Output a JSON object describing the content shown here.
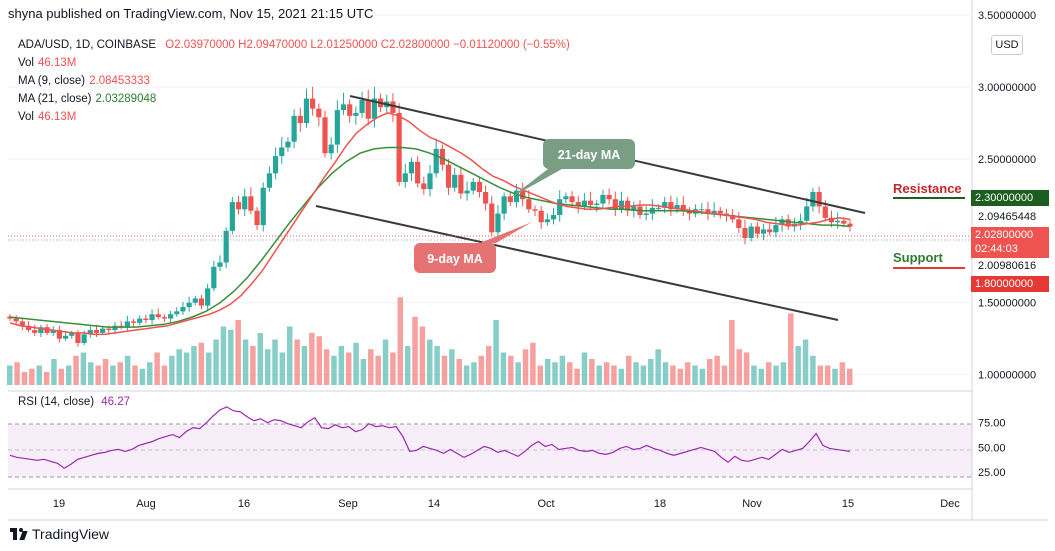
{
  "header": "shyna published on TradingView.com, Nov 15, 2021 21:15 UTC",
  "legend": {
    "symbol": "ADA/USD, 1D, COINBASE",
    "ohlc": "O2.03970000  H2.09470000  L2.01250000  C2.02800000  −0.01120000 (−0.55%)",
    "vol_label": "Vol",
    "vol_value": "46.13M",
    "ma9_label": "MA (9, close)",
    "ma9_value": "2.08453333",
    "ma21_label": "MA (21, close)",
    "ma21_value": "2.03289048",
    "vol2_label": "Vol",
    "vol2_value": "46.13M"
  },
  "currency_button": "USD",
  "rsi": {
    "label": "RSI (14, close)",
    "value": "46.27"
  },
  "annotations": {
    "ma21": "21-day MA",
    "ma9": "9-day MA",
    "resistance": "Resistance",
    "support": "Support"
  },
  "price_tags": {
    "resistance": "2.30000000",
    "ma9": "2.09465448",
    "close": "2.02800000",
    "countdown": "02:44:03",
    "ma21": "2.00980616",
    "support": "1.80000000"
  },
  "brand": "TradingView",
  "colors": {
    "up": "#26a69a",
    "down": "#ef5350",
    "ma9": "#ef5350",
    "ma21": "#388e3c",
    "rsi": "#9c27b0",
    "resistance": "#1b5e20",
    "support_tag": "#e53935"
  },
  "chart_data": {
    "type": "candlestick",
    "price_axis": {
      "ticks": [
        "3.50000000",
        "3.00000000",
        "2.50000000",
        "1.50000000",
        "1.00000000"
      ],
      "range": [
        0.9,
        3.55
      ]
    },
    "rsi_axis": {
      "ticks": [
        "75.00",
        "50.00",
        "25.00"
      ],
      "band": [
        30,
        70
      ]
    },
    "time_axis": {
      "ticks": [
        "19",
        "Aug",
        "16",
        "Sep",
        "14",
        "Oct",
        "18",
        "Nov",
        "15",
        "Dec"
      ]
    },
    "candles_close": [
      1.39,
      1.37,
      1.34,
      1.31,
      1.29,
      1.33,
      1.29,
      1.31,
      1.25,
      1.27,
      1.29,
      1.22,
      1.28,
      1.31,
      1.29,
      1.32,
      1.31,
      1.34,
      1.33,
      1.37,
      1.36,
      1.39,
      1.38,
      1.42,
      1.4,
      1.39,
      1.42,
      1.44,
      1.47,
      1.5,
      1.53,
      1.48,
      1.6,
      1.75,
      1.78,
      2.0,
      2.2,
      2.15,
      2.24,
      2.14,
      2.04,
      2.3,
      2.4,
      2.52,
      2.58,
      2.62,
      2.8,
      2.75,
      2.92,
      2.85,
      2.79,
      2.54,
      2.6,
      2.84,
      2.88,
      2.8,
      2.82,
      2.91,
      2.78,
      2.92,
      2.86,
      2.9,
      2.82,
      2.34,
      2.4,
      2.48,
      2.33,
      2.29,
      2.4,
      2.57,
      2.46,
      2.3,
      2.39,
      2.26,
      2.28,
      2.34,
      2.27,
      2.19,
      1.99,
      2.12,
      2.24,
      2.2,
      2.28,
      2.22,
      2.15,
      2.14,
      2.06,
      2.08,
      2.11,
      2.22,
      2.24,
      2.2,
      2.17,
      2.21,
      2.18,
      2.19,
      2.25,
      2.22,
      2.15,
      2.21,
      2.14,
      2.17,
      2.11,
      2.12,
      2.16,
      2.16,
      2.2,
      2.15,
      2.18,
      2.14,
      2.12,
      2.15,
      2.15,
      2.12,
      2.14,
      2.12,
      2.11,
      2.08,
      2.02,
      1.95,
      2.03,
      1.98,
      2.01,
      1.99,
      2.04,
      2.08,
      2.03,
      2.05,
      2.07,
      2.17,
      2.27,
      2.17,
      2.09,
      2.06,
      2.07,
      2.05,
      2.03
    ],
    "ma9": [
      1.36,
      1.34,
      1.33,
      1.32,
      1.31,
      1.3,
      1.29,
      1.29,
      1.28,
      1.28,
      1.29,
      1.3,
      1.31,
      1.32,
      1.33,
      1.34,
      1.36,
      1.38,
      1.4,
      1.42,
      1.45,
      1.49,
      1.55,
      1.63,
      1.72,
      1.83,
      1.94,
      2.05,
      2.16,
      2.27,
      2.38,
      2.48,
      2.59,
      2.68,
      2.74,
      2.79,
      2.82,
      2.8,
      2.76,
      2.7,
      2.65,
      2.62,
      2.58,
      2.54,
      2.49,
      2.43,
      2.38,
      2.35,
      2.31,
      2.28,
      2.25,
      2.22,
      2.19,
      2.17,
      2.16,
      2.15,
      2.15,
      2.16,
      2.17,
      2.17,
      2.18,
      2.18,
      2.17,
      2.16,
      2.15,
      2.14,
      2.13,
      2.12,
      2.11,
      2.1,
      2.09,
      2.08,
      2.06,
      2.05,
      2.04,
      2.04,
      2.05,
      2.06,
      2.08,
      2.09,
      2.08
    ],
    "ma21": [
      1.4,
      1.39,
      1.38,
      1.37,
      1.36,
      1.35,
      1.34,
      1.33,
      1.33,
      1.33,
      1.34,
      1.35,
      1.37,
      1.4,
      1.44,
      1.5,
      1.58,
      1.68,
      1.8,
      1.93,
      2.06,
      2.18,
      2.3,
      2.4,
      2.48,
      2.54,
      2.57,
      2.58,
      2.58,
      2.57,
      2.54,
      2.5,
      2.45,
      2.4,
      2.35,
      2.3,
      2.26,
      2.23,
      2.21,
      2.19,
      2.18,
      2.17,
      2.16,
      2.15,
      2.15,
      2.14,
      2.14,
      2.14,
      2.14,
      2.13,
      2.12,
      2.11,
      2.1,
      2.09,
      2.08,
      2.07,
      2.06,
      2.05,
      2.04,
      2.04,
      2.03
    ],
    "volume_relative": [
      0.3,
      0.35,
      0.2,
      0.25,
      0.3,
      0.2,
      0.4,
      0.25,
      0.3,
      0.45,
      0.5,
      0.35,
      0.3,
      0.4,
      0.3,
      0.35,
      0.45,
      0.3,
      0.25,
      0.35,
      0.5,
      0.3,
      0.45,
      0.55,
      0.5,
      0.6,
      0.65,
      0.5,
      0.7,
      0.9,
      0.85,
      1.0,
      0.7,
      0.6,
      0.8,
      0.55,
      0.7,
      0.5,
      0.9,
      0.7,
      0.6,
      0.8,
      0.75,
      0.55,
      0.45,
      0.6,
      0.5,
      0.65,
      0.4,
      0.55,
      0.45,
      0.7,
      0.5,
      1.35,
      0.6,
      1.05,
      0.9,
      0.7,
      0.6,
      0.45,
      0.55,
      0.4,
      0.3,
      0.35,
      0.45,
      0.6,
      1.0,
      0.5,
      0.45,
      0.35,
      0.55,
      0.65,
      0.3,
      0.4,
      0.35,
      0.45,
      0.35,
      0.25,
      0.5,
      0.4,
      0.3,
      0.35,
      0.3,
      0.25,
      0.45,
      0.35,
      0.3,
      0.4,
      0.55,
      0.35,
      0.3,
      0.25,
      0.35,
      0.3,
      0.25,
      0.4,
      0.45,
      0.3,
      1.0,
      0.55,
      0.5,
      0.3,
      0.25,
      0.35,
      0.3,
      0.35,
      1.1,
      0.6,
      0.7,
      0.45,
      0.3,
      0.3,
      0.25,
      0.35,
      0.25
    ],
    "rsi": [
      42,
      40,
      39,
      38,
      37,
      38,
      36,
      34,
      29,
      33,
      38,
      40,
      42,
      44,
      45,
      47,
      48,
      46,
      48,
      52,
      54,
      56,
      59,
      61,
      63,
      60,
      66,
      70,
      69,
      75,
      82,
      88,
      91,
      87,
      86,
      81,
      77,
      79,
      75,
      78,
      77,
      74,
      72,
      70,
      76,
      80,
      70,
      69,
      73,
      70,
      71,
      66,
      68,
      74,
      71,
      72,
      70,
      71,
      61,
      46,
      47,
      51,
      49,
      47,
      44,
      48,
      44,
      40,
      43,
      47,
      51,
      49,
      45,
      47,
      44,
      41,
      46,
      52,
      56,
      51,
      53,
      48,
      49,
      50,
      47,
      46,
      47,
      44,
      43,
      45,
      49,
      51,
      48,
      49,
      52,
      49,
      47,
      44,
      42,
      44,
      46,
      48,
      50,
      48,
      46,
      40,
      35,
      41,
      37,
      36,
      38,
      40,
      38,
      43,
      48,
      45,
      47,
      49,
      56,
      64,
      52,
      49,
      48,
      47,
      46
    ]
  }
}
